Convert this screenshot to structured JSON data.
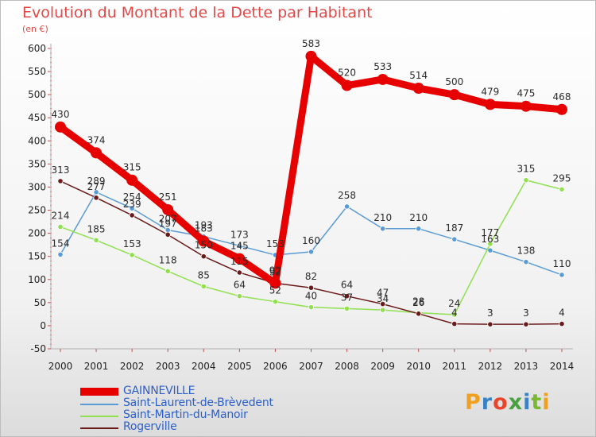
{
  "title": "Evolution du Montant de la Dette par Habitant",
  "subtitle": "(en €)",
  "logo": {
    "text": "Proxiti",
    "letter_colors": [
      "#f0a020",
      "#3a82c8",
      "#e8452a",
      "#48a040",
      "#3a82c8",
      "#7ab830",
      "#f0a020"
    ]
  },
  "chart_data": {
    "type": "line",
    "title": "Evolution du Montant de la Dette par Habitant",
    "ylabel": "(en €)",
    "xlabel": "",
    "ylim": [
      -50,
      600
    ],
    "yticks": [
      -50,
      0,
      50,
      100,
      150,
      200,
      250,
      300,
      350,
      400,
      450,
      500,
      550,
      600
    ],
    "grid": false,
    "legend_position": "bottom-left",
    "categories": [
      "2000",
      "2001",
      "2002",
      "2003",
      "2004",
      "2005",
      "2006",
      "2007",
      "2008",
      "2009",
      "2010",
      "2011",
      "2012",
      "2013",
      "2014"
    ],
    "series": [
      {
        "name": "GAINNEVILLE",
        "color": "#e60000",
        "values": [
          430,
          374,
          315,
          251,
          183,
          145,
          92,
          583,
          520,
          533,
          514,
          500,
          479,
          475,
          468
        ],
        "labels": [
          "430",
          "374",
          "315",
          "251",
          "183",
          "145",
          "92",
          "583",
          "520",
          "533",
          "514",
          "500",
          "479",
          "475",
          "468"
        ]
      },
      {
        "name": "Saint-Laurent-de-Brèvedent",
        "color": "#5b9bd5",
        "values": [
          154,
          289,
          254,
          207,
          193,
          173,
          153,
          160,
          258,
          210,
          210,
          187,
          163,
          138,
          110
        ],
        "labels": [
          "154",
          "289",
          "254",
          "207",
          "193",
          "173",
          "153",
          "160",
          "258",
          "210",
          "210",
          "187",
          "163",
          "138",
          "110"
        ]
      },
      {
        "name": "Saint-Martin-du-Manoir",
        "color": "#90e050",
        "values": [
          214,
          185,
          153,
          118,
          85,
          64,
          52,
          40,
          37,
          34,
          28,
          24,
          177,
          315,
          295
        ],
        "labels": [
          "214",
          "185",
          "153",
          "118",
          "85",
          "64",
          "52",
          "40",
          "37",
          "34",
          "28",
          "24",
          "177",
          "315",
          "295"
        ]
      },
      {
        "name": "Rogerville",
        "color": "#6b1a1a",
        "values": [
          313,
          277,
          239,
          197,
          150,
          115,
          92,
          82,
          64,
          47,
          26,
          4,
          3,
          3,
          4
        ],
        "labels": [
          "313",
          "277",
          "239",
          "197",
          "150",
          "115",
          "92",
          "82",
          "64",
          "47",
          "26",
          "4",
          "3",
          "3",
          "4"
        ]
      }
    ]
  }
}
